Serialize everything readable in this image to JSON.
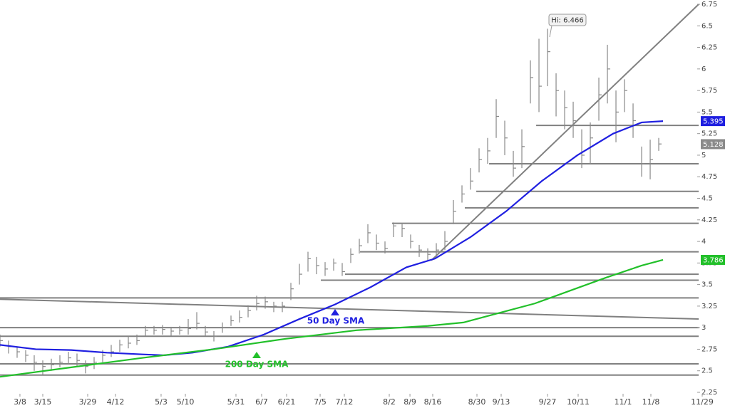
{
  "chart_data": {
    "type": "ohlc",
    "hi_label": "Hi: 6.466",
    "xlim": [
      0,
      85.33
    ],
    "ylim": [
      2.25,
      6.75
    ],
    "yticks": [
      2.25,
      2.5,
      2.75,
      3,
      3.25,
      3.5,
      3.75,
      4,
      4.25,
      4.5,
      4.75,
      5,
      5.25,
      5.5,
      5.75,
      6,
      6.25,
      6.5,
      6.75
    ],
    "xticks": [
      {
        "value": 2.33,
        "label": "3/8"
      },
      {
        "value": 5,
        "label": "3/15"
      },
      {
        "value": 10.25,
        "label": "3/29"
      },
      {
        "value": 13.5,
        "label": "4/12"
      },
      {
        "value": 18.83,
        "label": "5/3"
      },
      {
        "value": 21.67,
        "label": "5/10"
      },
      {
        "value": 27.58,
        "label": "5/31"
      },
      {
        "value": 30.58,
        "label": "6/7"
      },
      {
        "value": 33.5,
        "label": "6/21"
      },
      {
        "value": 37.42,
        "label": "7/5"
      },
      {
        "value": 40.25,
        "label": "7/12"
      },
      {
        "value": 45.5,
        "label": "8/2"
      },
      {
        "value": 47.92,
        "label": "8/9"
      },
      {
        "value": 50.58,
        "label": "8/16"
      },
      {
        "value": 55.75,
        "label": "8/30"
      },
      {
        "value": 58.58,
        "label": "9/13"
      },
      {
        "value": 64,
        "label": "9/27"
      },
      {
        "value": 67.58,
        "label": "10/11"
      },
      {
        "value": 72.83,
        "label": "11/1"
      },
      {
        "value": 76.08,
        "label": "11/8"
      },
      {
        "value": 82.08,
        "label": "11/29"
      }
    ],
    "price": {
      "color": "#888888",
      "x": [
        0,
        1,
        2,
        3,
        4,
        5,
        6,
        7,
        8,
        9,
        10,
        11,
        12,
        13,
        14,
        15,
        16,
        17,
        18,
        19,
        20,
        21,
        22,
        23,
        24,
        25,
        26,
        27,
        28,
        29,
        30,
        31,
        32,
        33,
        34,
        35,
        36,
        37,
        38,
        39,
        40,
        41,
        42,
        43,
        44,
        45,
        46,
        47,
        48,
        49,
        50,
        51,
        52,
        53,
        54,
        55,
        56,
        57,
        58,
        59,
        60,
        61,
        62,
        63,
        64,
        65,
        66,
        67,
        68,
        69,
        70,
        71,
        72,
        73,
        74,
        75,
        76,
        77
      ],
      "high": [
        2.92,
        2.85,
        2.78,
        2.74,
        2.68,
        2.62,
        2.64,
        2.68,
        2.72,
        2.7,
        2.62,
        2.66,
        2.74,
        2.8,
        2.86,
        2.9,
        2.92,
        3.02,
        3.02,
        3.03,
        3.01,
        3.02,
        3.1,
        3.18,
        3.02,
        2.96,
        3.06,
        3.14,
        3.2,
        3.26,
        3.37,
        3.36,
        3.3,
        3.3,
        3.52,
        3.74,
        3.88,
        3.82,
        3.76,
        3.8,
        3.75,
        3.92,
        4.03,
        4.2,
        4.08,
        4.0,
        4.22,
        4.2,
        4.08,
        3.96,
        3.92,
        3.98,
        4.12,
        4.48,
        4.65,
        4.85,
        5.08,
        5.2,
        5.65,
        5.4,
        5.05,
        5.3,
        6.1,
        6.35,
        6.466,
        5.95,
        5.75,
        5.62,
        5.3,
        5.38,
        5.9,
        6.28,
        5.75,
        5.88,
        5.6,
        5.1,
        5.18,
        5.2
      ],
      "low": [
        2.78,
        2.7,
        2.65,
        2.6,
        2.5,
        2.45,
        2.5,
        2.54,
        2.58,
        2.55,
        2.47,
        2.52,
        2.6,
        2.66,
        2.72,
        2.76,
        2.8,
        2.9,
        2.92,
        2.92,
        2.9,
        2.92,
        2.92,
        2.98,
        2.9,
        2.84,
        2.94,
        3.02,
        3.06,
        3.12,
        3.2,
        3.22,
        3.18,
        3.18,
        3.32,
        3.5,
        3.65,
        3.62,
        3.6,
        3.66,
        3.6,
        3.75,
        3.86,
        3.98,
        3.9,
        3.86,
        4.05,
        4.05,
        3.92,
        3.82,
        3.78,
        3.82,
        3.9,
        4.2,
        4.45,
        4.6,
        4.8,
        4.9,
        5.2,
        5.0,
        4.75,
        4.85,
        5.6,
        5.5,
        5.8,
        5.45,
        5.3,
        5.2,
        4.85,
        4.9,
        5.4,
        5.6,
        5.15,
        5.5,
        5.2,
        4.75,
        4.72,
        5.05
      ],
      "close": [
        2.85,
        2.78,
        2.72,
        2.68,
        2.6,
        2.55,
        2.57,
        2.6,
        2.65,
        2.62,
        2.55,
        2.6,
        2.68,
        2.72,
        2.8,
        2.82,
        2.85,
        2.97,
        2.97,
        2.98,
        2.96,
        2.97,
        2.99,
        3.05,
        2.95,
        2.9,
        3.0,
        3.08,
        3.12,
        3.2,
        3.28,
        3.3,
        3.25,
        3.25,
        3.45,
        3.62,
        3.8,
        3.72,
        3.68,
        3.75,
        3.65,
        3.85,
        3.95,
        4.1,
        3.98,
        3.92,
        4.18,
        4.15,
        4.0,
        3.9,
        3.85,
        3.9,
        4.0,
        4.35,
        4.55,
        4.7,
        4.95,
        5.05,
        5.45,
        5.2,
        4.85,
        5.1,
        5.9,
        5.8,
        6.2,
        5.75,
        5.55,
        5.4,
        5.0,
        5.2,
        5.7,
        6.0,
        5.5,
        5.75,
        5.4,
        4.9,
        4.95,
        5.13
      ]
    },
    "series": [
      {
        "name": "50 Day SMA",
        "color": "#1f1fe0",
        "x": [
          0,
          4.17,
          8.33,
          12.5,
          16.67,
          19.17,
          22.5,
          26.67,
          30.83,
          35,
          39.17,
          43.33,
          47.5,
          50.83,
          55,
          59.17,
          63.33,
          67.5,
          71.67,
          75,
          77.5
        ],
        "values": [
          2.8,
          2.75,
          2.74,
          2.71,
          2.69,
          2.68,
          2.71,
          2.78,
          2.92,
          3.1,
          3.27,
          3.47,
          3.7,
          3.8,
          4.05,
          4.35,
          4.7,
          5.0,
          5.25,
          5.38,
          5.395
        ]
      },
      {
        "name": "200 Day SMA",
        "color": "#22c02a",
        "x": [
          0,
          8.33,
          16.67,
          25,
          33.33,
          41.67,
          50,
          54.17,
          58.33,
          62.5,
          66.67,
          70.83,
          75,
          77.5
        ],
        "values": [
          2.43,
          2.54,
          2.65,
          2.75,
          2.87,
          2.97,
          3.02,
          3.06,
          3.17,
          3.28,
          3.43,
          3.58,
          3.72,
          3.786
        ]
      }
    ],
    "levels": [
      {
        "x": [
          62.67,
          81.67
        ],
        "y": [
          5.345,
          5.345
        ]
      },
      {
        "x": [
          57.17,
          81.67
        ],
        "y": [
          4.9,
          4.9
        ]
      },
      {
        "x": [
          55.67,
          81.67
        ],
        "y": [
          4.58,
          4.58
        ]
      },
      {
        "x": [
          54.33,
          81.67
        ],
        "y": [
          4.39,
          4.39
        ]
      },
      {
        "x": [
          45.83,
          81.67
        ],
        "y": [
          4.21,
          4.21
        ]
      },
      {
        "x": [
          42.08,
          81.67
        ],
        "y": [
          3.88,
          3.88
        ]
      },
      {
        "x": [
          40.33,
          81.67
        ],
        "y": [
          3.62,
          3.62
        ]
      },
      {
        "x": [
          37.5,
          81.67
        ],
        "y": [
          3.55,
          3.55
        ]
      },
      {
        "x": [
          0,
          81.67
        ],
        "y": [
          3.345,
          3.345
        ]
      },
      {
        "x": [
          0,
          81.67
        ],
        "y": [
          3.0,
          3.0
        ]
      },
      {
        "x": [
          0,
          81.67
        ],
        "y": [
          2.9,
          2.9
        ]
      },
      {
        "x": [
          0,
          81.67
        ],
        "y": [
          2.58,
          2.58
        ]
      },
      {
        "x": [
          0,
          81.67
        ],
        "y": [
          2.45,
          2.45
        ]
      },
      {
        "x": [
          0,
          81.67
        ],
        "y": [
          3.33,
          3.1
        ]
      },
      {
        "x": [
          50.42,
          81.67
        ],
        "y": [
          3.78,
          6.75
        ]
      }
    ],
    "tags": [
      {
        "value": 5.395,
        "color": "#1f1fe0"
      },
      {
        "value": 5.128,
        "color": "#8a8a8a"
      },
      {
        "value": 3.786,
        "color": "#22c02a"
      }
    ]
  }
}
